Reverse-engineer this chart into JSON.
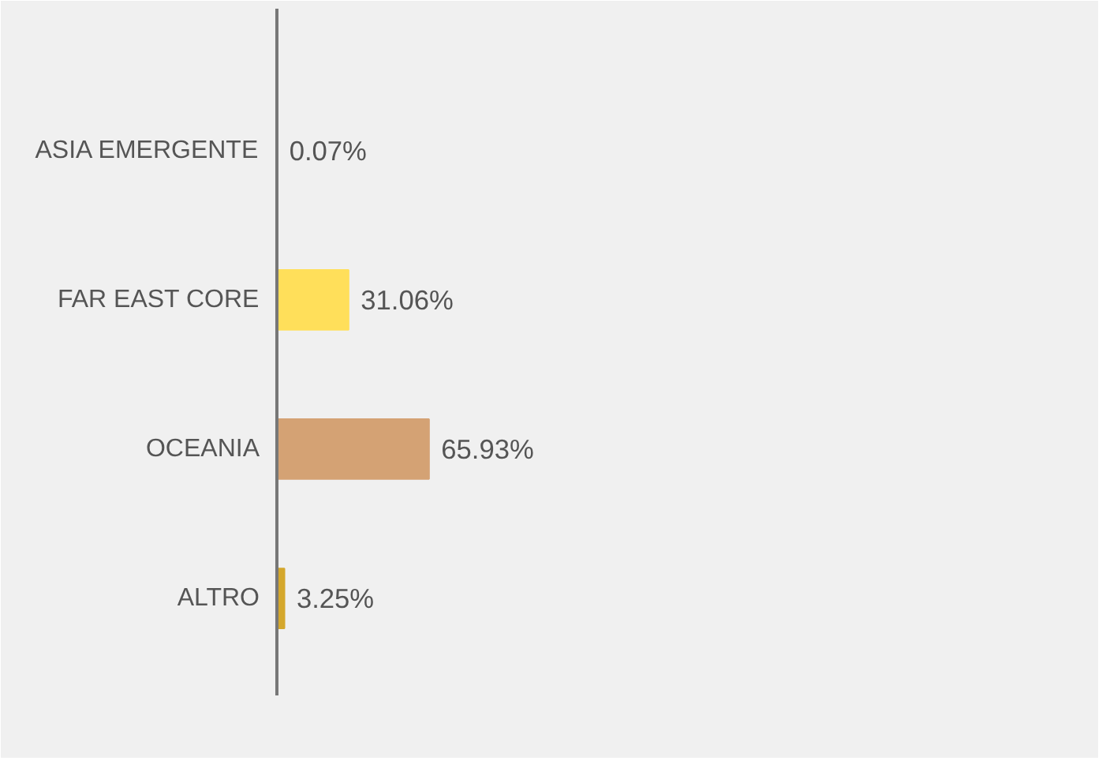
{
  "chart_data": {
    "type": "bar",
    "orientation": "horizontal",
    "categories": [
      "ASIA EMERGENTE",
      "FAR EAST CORE",
      "OCEANIA",
      "ALTRO"
    ],
    "values": [
      0.07,
      31.06,
      65.93,
      3.25
    ],
    "colors": [
      "#d4a72c",
      "#ffdf5a",
      "#d4a274",
      "#d4a72c"
    ],
    "value_labels": [
      "0.07%",
      "31.06%",
      "65.93%",
      "3.25%"
    ],
    "grid": false
  }
}
